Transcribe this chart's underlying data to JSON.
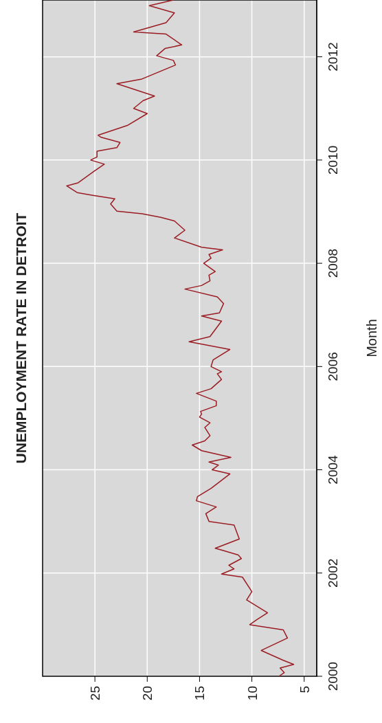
{
  "chart_data": {
    "type": "line",
    "orientation": "horizontal",
    "title": "UNEMPLOYMENT RATE IN DETROIT",
    "ylabel": "Month",
    "ylim": [
      2000,
      2013.1
    ],
    "yticks": [
      2000,
      2002,
      2004,
      2006,
      2008,
      2010,
      2012
    ],
    "xlim": [
      30,
      3.8
    ],
    "xticks": [
      5,
      10,
      15,
      20,
      25
    ],
    "grid": true,
    "series": [
      {
        "color": "#9b1b22",
        "x": [
          2000.0,
          2000.07,
          2000.16,
          2000.23,
          2000.31,
          2000.5,
          2000.74,
          2000.9,
          2001.0,
          2001.1,
          2001.23,
          2001.48,
          2001.64,
          2001.92,
          2001.98,
          2002.08,
          2002.15,
          2002.28,
          2002.35,
          2002.44,
          2002.48,
          2002.66,
          2002.93,
          2003.0,
          2003.15,
          2003.28,
          2003.4,
          2003.48,
          2003.64,
          2003.92,
          2004.0,
          2004.09,
          2004.15,
          2004.24,
          2004.37,
          2004.48,
          2004.56,
          2004.66,
          2004.82,
          2004.91,
          2005.02,
          2005.08,
          2005.13,
          2005.24,
          2005.33,
          2005.48,
          2005.57,
          2005.75,
          2005.86,
          2005.9,
          2006.0,
          2006.13,
          2006.33,
          2006.48,
          2006.58,
          2006.88,
          2006.98,
          2007.04,
          2007.22,
          2007.35,
          2007.5,
          2007.57,
          2007.66,
          2007.77,
          2007.84,
          2008.0,
          2008.1,
          2008.17,
          2008.26,
          2008.31,
          2008.49,
          2008.64,
          2008.82,
          2008.89,
          2008.96,
          2009.01,
          2009.15,
          2009.25,
          2009.32,
          2009.37,
          2009.5,
          2009.56,
          2009.78,
          2009.92,
          2010.0,
          2010.06,
          2010.17,
          2010.24,
          2010.34,
          2010.44,
          2010.48,
          2010.67,
          2010.9,
          2011.0,
          2011.15,
          2011.24,
          2011.48,
          2011.57,
          2011.84,
          2011.93,
          2012.02,
          2012.16,
          2012.23,
          2012.44,
          2012.48,
          2012.66,
          2012.85,
          2012.99,
          2013.1
        ],
        "values": [
          7.4,
          6.9,
          7.3,
          6.0,
          7.0,
          9.1,
          6.6,
          7.0,
          10.2,
          9.5,
          8.5,
          10.5,
          10.0,
          10.9,
          12.9,
          11.7,
          12.2,
          11.0,
          11.3,
          12.8,
          13.5,
          11.2,
          11.7,
          14.1,
          14.4,
          13.4,
          15.3,
          15.2,
          13.9,
          12.1,
          13.8,
          13.2,
          14.1,
          12.0,
          14.8,
          15.7,
          14.5,
          14.0,
          14.5,
          14.0,
          15.0,
          14.8,
          14.9,
          13.4,
          13.4,
          15.3,
          13.9,
          12.9,
          13.3,
          12.9,
          13.9,
          13.7,
          12.1,
          16.0,
          14.0,
          12.9,
          14.8,
          13.1,
          12.7,
          13.3,
          16.4,
          14.8,
          14.0,
          14.1,
          13.5,
          14.6,
          13.9,
          14.1,
          12.8,
          14.8,
          17.4,
          16.4,
          17.4,
          18.7,
          20.5,
          22.9,
          23.5,
          23.1,
          25.3,
          26.7,
          27.7,
          26.6,
          25.1,
          24.1,
          25.4,
          24.8,
          24.8,
          22.9,
          22.6,
          24.4,
          24.7,
          21.9,
          20.0,
          21.3,
          20.4,
          19.3,
          22.9,
          20.5,
          17.3,
          17.5,
          19.1,
          18.3,
          16.7,
          18.2,
          21.3,
          18.2,
          17.4,
          19.8,
          17.5
        ]
      }
    ]
  }
}
